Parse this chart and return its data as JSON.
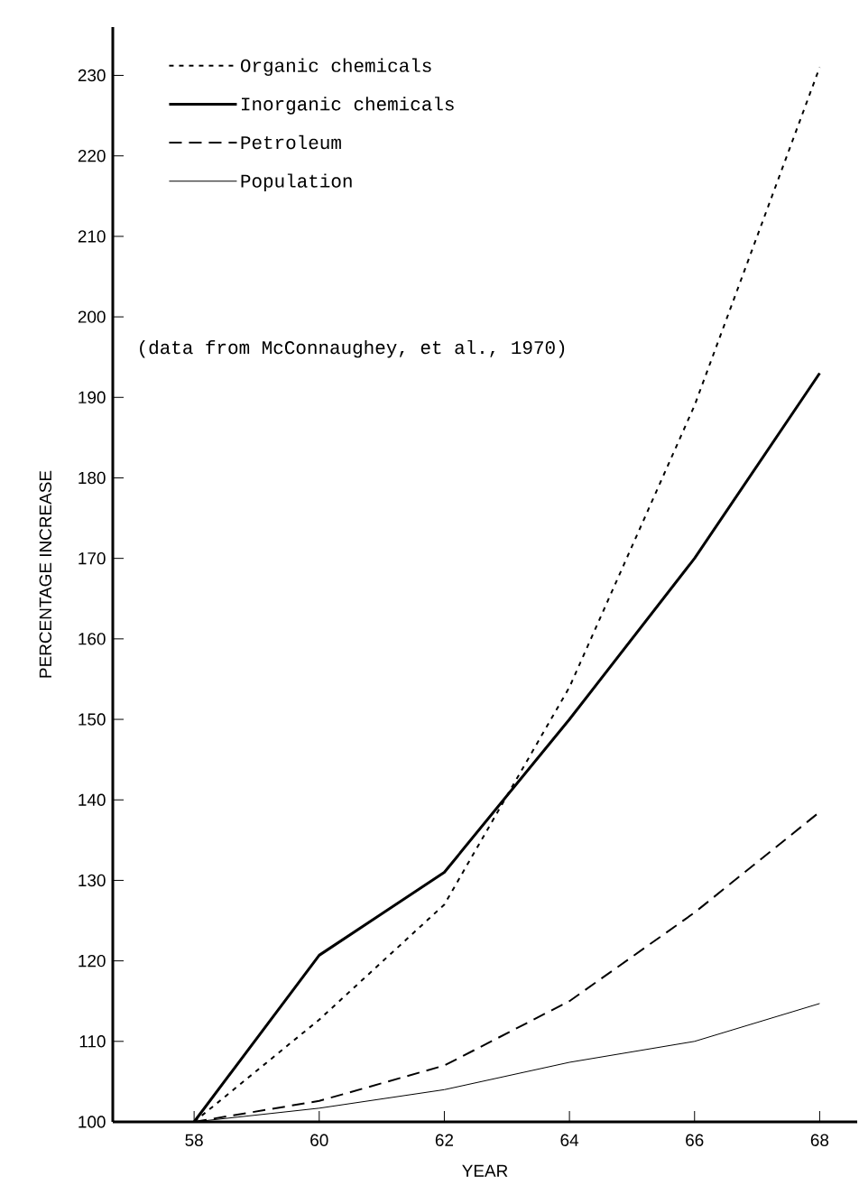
{
  "chart_data": {
    "type": "line",
    "xlabel": "YEAR",
    "ylabel": "PERCENTAGE INCREASE",
    "x": [
      58,
      60,
      62,
      64,
      66,
      68
    ],
    "series": [
      {
        "name": "Organic chemicals",
        "color": "#000000",
        "line_style": "dotted",
        "values": [
          100,
          112.7,
          127,
          154,
          189,
          231
        ]
      },
      {
        "name": "Inorganic chemicals",
        "color": "#000000",
        "line_style": "solid",
        "values": [
          100,
          120.7,
          131,
          150,
          170,
          193
        ]
      },
      {
        "name": "Petroleum",
        "color": "#000000",
        "line_style": "dashed",
        "values": [
          100,
          102.6,
          107,
          115,
          126,
          138.5
        ]
      },
      {
        "name": "Population",
        "color": "#000000",
        "line_style": "solid",
        "values": [
          100,
          101.7,
          104,
          107.4,
          110,
          114.7
        ]
      }
    ],
    "xlim": [
      56.7,
      68.6
    ],
    "ylim": [
      100,
      236
    ],
    "xticks": [
      58,
      60,
      62,
      64,
      66,
      68
    ],
    "yticks": [
      100,
      110,
      120,
      130,
      140,
      150,
      160,
      170,
      180,
      190,
      200,
      210,
      220,
      230
    ],
    "legend": "top left",
    "grid": false,
    "marker": "none",
    "annotations": [
      "(data from McConnaughey, et al., 1970)"
    ]
  }
}
